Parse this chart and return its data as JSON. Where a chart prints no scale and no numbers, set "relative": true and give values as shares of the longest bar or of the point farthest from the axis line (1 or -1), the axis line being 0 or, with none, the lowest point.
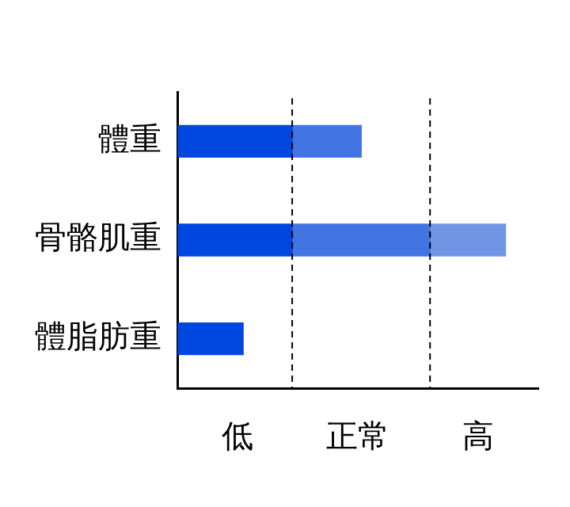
{
  "chart_data": {
    "type": "bar",
    "orientation": "horizontal",
    "stacked": true,
    "relative": true,
    "categories": [
      "體重",
      "骨骼肌重",
      "體脂肪重"
    ],
    "series": [
      {
        "color": "#0047e0",
        "values": [
          0.35,
          0.35,
          0.2
        ]
      },
      {
        "color": "#4274e2",
        "values": [
          0.21,
          0.42,
          0
        ]
      },
      {
        "color": "#7095e4",
        "values": [
          0,
          0.23,
          0
        ]
      }
    ],
    "ref_lines": [
      {
        "axis": "x",
        "value": 0.35,
        "line_style": "dashed",
        "color": "#000000"
      },
      {
        "axis": "x",
        "value": 0.77,
        "line_style": "dashed",
        "color": "#000000"
      }
    ],
    "annotations": [
      "低",
      "正常",
      "高"
    ],
    "grid": false,
    "legend": false
  }
}
